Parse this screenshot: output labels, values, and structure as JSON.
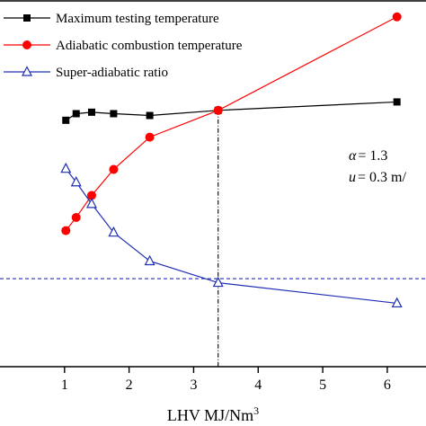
{
  "chart_data": {
    "type": "line",
    "xlabel": "LHV  MJ/Nm",
    "xlabel_superscript": "3",
    "xlim": [
      0,
      6.6
    ],
    "ylim": [
      0,
      1
    ],
    "x_ticks": [
      1,
      2,
      3,
      4,
      5,
      6
    ],
    "x_tick_labels": [
      "1",
      "2",
      "3",
      "4",
      "5",
      "6"
    ],
    "grid": false,
    "legend_position": "top-left",
    "series": [
      {
        "name": "Maximum testing temperature",
        "marker": "square",
        "color": "#000000",
        "x": [
          1.02,
          1.18,
          1.42,
          1.76,
          2.32,
          3.38,
          6.15
        ],
        "y": [
          0.672,
          0.69,
          0.694,
          0.69,
          0.685,
          0.699,
          0.722
        ]
      },
      {
        "name": "Adiabatic combustion temperature",
        "marker": "circle",
        "color": "#ff0000",
        "x": [
          1.02,
          1.18,
          1.42,
          1.76,
          2.32,
          3.38,
          6.15
        ],
        "y": [
          0.371,
          0.407,
          0.467,
          0.538,
          0.626,
          0.699,
          0.954
        ]
      },
      {
        "name": "Super-adiabatic ratio",
        "marker": "triangle-open",
        "color": "#1f2fb5",
        "x": [
          1.02,
          1.18,
          1.42,
          1.76,
          2.32,
          3.38,
          6.15
        ],
        "y": [
          0.54,
          0.503,
          0.444,
          0.366,
          0.288,
          0.229,
          0.173
        ]
      }
    ],
    "reference_lines": [
      {
        "orientation": "horizontal",
        "y": 0.24,
        "style": "dashed",
        "color": "#1f2fb5"
      },
      {
        "orientation": "vertical",
        "x": 3.38,
        "style": "dash-dot",
        "color": "#000000"
      }
    ],
    "annotations": {
      "alpha_symbol": "α",
      "alpha_eq": "=  1.3",
      "u_symbol": "u",
      "u_eq": "=  0.3 m/"
    }
  }
}
